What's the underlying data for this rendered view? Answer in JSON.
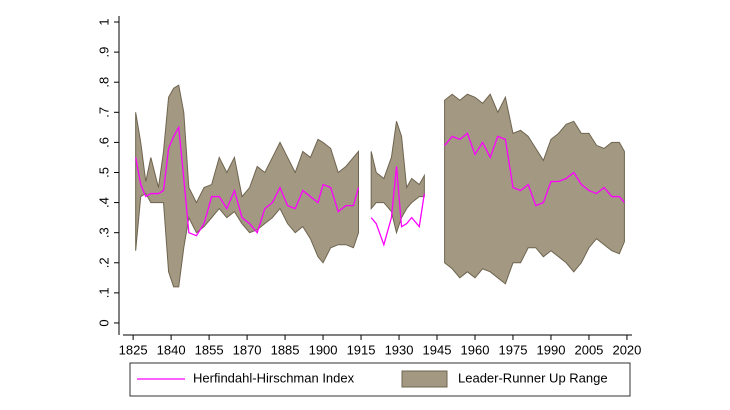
{
  "chart_data": {
    "type": "line-range",
    "x": [
      1826,
      1828,
      1830,
      1832,
      1835,
      1837,
      1839,
      1841,
      1843,
      1845,
      1847,
      1850,
      1853,
      1856,
      1859,
      1862,
      1865,
      1868,
      1871,
      1874,
      1877,
      1880,
      1883,
      1886,
      1889,
      1892,
      1895,
      1898,
      1900,
      1903,
      1906,
      1909,
      1912,
      1914,
      1917,
      1919,
      1921,
      1924,
      1927,
      1929,
      1931,
      1933,
      1935,
      1938,
      1940,
      1944,
      1948,
      1951,
      1954,
      1957,
      1960,
      1963,
      1966,
      1969,
      1972,
      1975,
      1978,
      1981,
      1984,
      1987,
      1990,
      1993,
      1996,
      1999,
      2002,
      2005,
      2008,
      2011,
      2014,
      2017,
      2019
    ],
    "series": [
      {
        "name": "Herfindahl-Hirschman Index",
        "color": "#ff00ff",
        "values": [
          0.55,
          0.46,
          0.42,
          0.43,
          0.43,
          0.44,
          0.58,
          0.62,
          0.65,
          0.48,
          0.3,
          0.29,
          0.33,
          0.42,
          0.42,
          0.38,
          0.44,
          0.35,
          0.33,
          0.3,
          0.38,
          0.4,
          0.45,
          0.39,
          0.38,
          0.44,
          0.42,
          0.4,
          0.46,
          0.45,
          0.37,
          0.39,
          0.39,
          0.45,
          null,
          0.35,
          0.33,
          0.26,
          0.35,
          0.52,
          0.32,
          0.33,
          0.35,
          0.32,
          0.43,
          null,
          0.59,
          0.62,
          0.61,
          0.63,
          0.56,
          0.6,
          0.55,
          0.62,
          0.61,
          0.45,
          0.44,
          0.46,
          0.39,
          0.4,
          0.47,
          0.47,
          0.48,
          0.5,
          0.46,
          0.44,
          0.43,
          0.45,
          0.42,
          0.42,
          0.4
        ]
      },
      {
        "name": "Leader-Runner Up Range",
        "color": "#a39982",
        "edge_color": "#6e6450",
        "low": [
          0.24,
          0.42,
          0.43,
          0.4,
          0.4,
          0.4,
          0.17,
          0.12,
          0.12,
          0.25,
          0.35,
          0.3,
          0.32,
          0.35,
          0.38,
          0.35,
          0.37,
          0.33,
          0.3,
          0.31,
          0.33,
          0.35,
          0.38,
          0.33,
          0.3,
          0.32,
          0.28,
          0.22,
          0.2,
          0.25,
          0.26,
          0.26,
          0.25,
          0.3,
          null,
          0.38,
          0.4,
          0.4,
          0.37,
          0.3,
          0.35,
          0.38,
          0.4,
          0.42,
          0.42,
          null,
          0.2,
          0.18,
          0.15,
          0.17,
          0.15,
          0.18,
          0.17,
          0.15,
          0.13,
          0.2,
          0.2,
          0.25,
          0.25,
          0.22,
          0.24,
          0.22,
          0.2,
          0.17,
          0.2,
          0.25,
          0.28,
          0.26,
          0.24,
          0.23,
          0.27
        ],
        "high": [
          0.7,
          0.6,
          0.47,
          0.55,
          0.45,
          0.57,
          0.75,
          0.78,
          0.79,
          0.7,
          0.45,
          0.4,
          0.45,
          0.46,
          0.55,
          0.5,
          0.55,
          0.42,
          0.45,
          0.52,
          0.5,
          0.55,
          0.6,
          0.55,
          0.5,
          0.57,
          0.55,
          0.61,
          0.6,
          0.58,
          0.5,
          0.52,
          0.55,
          0.57,
          null,
          0.57,
          0.5,
          0.48,
          0.55,
          0.67,
          0.62,
          0.45,
          0.48,
          0.46,
          0.49,
          null,
          0.74,
          0.76,
          0.74,
          0.76,
          0.75,
          0.73,
          0.76,
          0.7,
          0.75,
          0.63,
          0.64,
          0.62,
          0.58,
          0.54,
          0.61,
          0.63,
          0.66,
          0.67,
          0.63,
          0.63,
          0.59,
          0.58,
          0.6,
          0.6,
          0.57
        ]
      }
    ],
    "xlim": [
      1821,
      2022
    ],
    "xticks": [
      1825,
      1840,
      1855,
      1870,
      1885,
      1900,
      1915,
      1930,
      1945,
      1960,
      1975,
      1990,
      2005,
      2020
    ],
    "ylim": [
      -0.04,
      1.02
    ],
    "yticks": [
      {
        "value": 0,
        "label": "0"
      },
      {
        "value": 0.1,
        "label": ".1"
      },
      {
        "value": 0.2,
        "label": ".2"
      },
      {
        "value": 0.3,
        "label": ".3"
      },
      {
        "value": 0.4,
        "label": ".4"
      },
      {
        "value": 0.5,
        "label": ".5"
      },
      {
        "value": 0.6,
        "label": ".6"
      },
      {
        "value": 0.7,
        "label": ".7"
      },
      {
        "value": 0.8,
        "label": ".8"
      },
      {
        "value": 0.9,
        "label": ".9"
      },
      {
        "value": 1,
        "label": "1"
      }
    ],
    "grid": false,
    "legend": "bottom"
  }
}
